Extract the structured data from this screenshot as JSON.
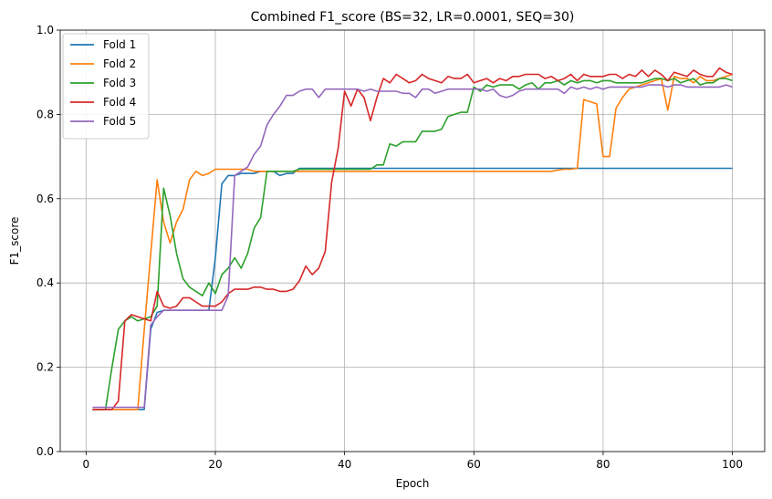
{
  "chart_data": {
    "type": "line",
    "title": "Combined F1_score (BS=32, LR=0.0001, SEQ=30)",
    "xlabel": "Epoch",
    "ylabel": "F1_score",
    "xlim": [
      -4,
      105
    ],
    "ylim": [
      0.0,
      1.0
    ],
    "xticks": [
      0,
      20,
      40,
      60,
      80,
      100
    ],
    "yticks": [
      0.0,
      0.2,
      0.4,
      0.6,
      0.8,
      1.0
    ],
    "xtick_labels": [
      "0",
      "20",
      "40",
      "60",
      "80",
      "100"
    ],
    "ytick_labels": [
      "0.0",
      "0.2",
      "0.4",
      "0.6",
      "0.8",
      "1.0"
    ],
    "grid": true,
    "legend_position": "top-left",
    "series": [
      {
        "name": "Fold 1",
        "color": "#1f77b4",
        "x": [
          1,
          2,
          3,
          4,
          5,
          6,
          7,
          8,
          9,
          10,
          11,
          12,
          13,
          14,
          15,
          16,
          17,
          18,
          19,
          20,
          21,
          22,
          23,
          24,
          25,
          26,
          27,
          28,
          29,
          30,
          31,
          32,
          33,
          34,
          35,
          40,
          50,
          60,
          70,
          80,
          90,
          100
        ],
        "values": [
          0.1,
          0.1,
          0.1,
          0.1,
          0.1,
          0.1,
          0.1,
          0.1,
          0.1,
          0.29,
          0.33,
          0.335,
          0.335,
          0.335,
          0.335,
          0.335,
          0.335,
          0.335,
          0.335,
          0.46,
          0.635,
          0.655,
          0.655,
          0.66,
          0.66,
          0.66,
          0.665,
          0.665,
          0.665,
          0.655,
          0.66,
          0.66,
          0.672,
          0.672,
          0.672,
          0.672,
          0.672,
          0.672,
          0.672,
          0.672,
          0.672,
          0.672
        ]
      },
      {
        "name": "Fold 2",
        "color": "#ff7f0e",
        "x": [
          1,
          2,
          3,
          4,
          5,
          6,
          7,
          8,
          9,
          10,
          11,
          12,
          13,
          14,
          15,
          16,
          17,
          18,
          19,
          20,
          21,
          22,
          23,
          24,
          25,
          26,
          27,
          28,
          29,
          30,
          40,
          50,
          60,
          70,
          72,
          73,
          74,
          75,
          76,
          77,
          78,
          79,
          80,
          81,
          82,
          83,
          84,
          85,
          86,
          87,
          88,
          89,
          90,
          91,
          92,
          93,
          94,
          95,
          96,
          97,
          98,
          99,
          100
        ],
        "values": [
          0.1,
          0.1,
          0.1,
          0.1,
          0.1,
          0.1,
          0.1,
          0.1,
          0.29,
          0.47,
          0.645,
          0.545,
          0.495,
          0.545,
          0.575,
          0.645,
          0.665,
          0.655,
          0.66,
          0.67,
          0.67,
          0.67,
          0.67,
          0.67,
          0.67,
          0.665,
          0.665,
          0.665,
          0.665,
          0.665,
          0.665,
          0.665,
          0.665,
          0.665,
          0.665,
          0.668,
          0.67,
          0.67,
          0.672,
          0.835,
          0.83,
          0.825,
          0.7,
          0.7,
          0.815,
          0.84,
          0.86,
          0.865,
          0.87,
          0.875,
          0.88,
          0.885,
          0.81,
          0.89,
          0.885,
          0.885,
          0.875,
          0.89,
          0.88,
          0.88,
          0.885,
          0.89,
          0.895
        ]
      },
      {
        "name": "Fold 3",
        "color": "#2ca02c",
        "x": [
          1,
          2,
          3,
          4,
          5,
          6,
          7,
          8,
          9,
          10,
          11,
          12,
          13,
          14,
          15,
          16,
          17,
          18,
          19,
          20,
          21,
          22,
          23,
          24,
          25,
          26,
          27,
          28,
          29,
          30,
          31,
          32,
          33,
          34,
          35,
          40,
          44,
          45,
          46,
          47,
          48,
          49,
          50,
          51,
          52,
          53,
          54,
          55,
          56,
          57,
          58,
          59,
          60,
          61,
          62,
          63,
          64,
          65,
          66,
          67,
          68,
          69,
          70,
          71,
          72,
          73,
          74,
          75,
          76,
          77,
          78,
          79,
          80,
          81,
          82,
          83,
          84,
          85,
          86,
          87,
          88,
          89,
          90,
          91,
          92,
          93,
          94,
          95,
          96,
          97,
          98,
          99,
          100
        ],
        "values": [
          0.1,
          0.1,
          0.1,
          0.2,
          0.29,
          0.31,
          0.32,
          0.31,
          0.315,
          0.32,
          0.345,
          0.625,
          0.56,
          0.47,
          0.41,
          0.39,
          0.38,
          0.37,
          0.4,
          0.375,
          0.42,
          0.435,
          0.46,
          0.435,
          0.47,
          0.53,
          0.555,
          0.665,
          0.665,
          0.665,
          0.665,
          0.665,
          0.67,
          0.67,
          0.67,
          0.67,
          0.67,
          0.68,
          0.68,
          0.73,
          0.725,
          0.735,
          0.735,
          0.735,
          0.76,
          0.76,
          0.76,
          0.765,
          0.795,
          0.8,
          0.805,
          0.805,
          0.865,
          0.855,
          0.87,
          0.865,
          0.87,
          0.87,
          0.87,
          0.86,
          0.87,
          0.875,
          0.86,
          0.875,
          0.875,
          0.88,
          0.87,
          0.88,
          0.875,
          0.88,
          0.88,
          0.875,
          0.88,
          0.88,
          0.875,
          0.875,
          0.875,
          0.875,
          0.875,
          0.88,
          0.885,
          0.885,
          0.88,
          0.885,
          0.875,
          0.88,
          0.885,
          0.87,
          0.875,
          0.875,
          0.885,
          0.885,
          0.88
        ]
      },
      {
        "name": "Fold 4",
        "color": "#d62728",
        "x": [
          1,
          2,
          3,
          4,
          5,
          6,
          7,
          8,
          9,
          10,
          11,
          12,
          13,
          14,
          15,
          16,
          17,
          18,
          19,
          20,
          21,
          22,
          23,
          24,
          25,
          26,
          27,
          28,
          29,
          30,
          31,
          32,
          33,
          34,
          35,
          36,
          37,
          38,
          39,
          40,
          41,
          42,
          43,
          44,
          45,
          46,
          47,
          48,
          49,
          50,
          51,
          52,
          53,
          54,
          55,
          56,
          57,
          58,
          59,
          60,
          61,
          62,
          63,
          64,
          65,
          66,
          67,
          68,
          69,
          70,
          71,
          72,
          73,
          74,
          75,
          76,
          77,
          78,
          79,
          80,
          81,
          82,
          83,
          84,
          85,
          86,
          87,
          88,
          89,
          90,
          91,
          92,
          93,
          94,
          95,
          96,
          97,
          98,
          99,
          100
        ],
        "values": [
          0.1,
          0.1,
          0.1,
          0.1,
          0.12,
          0.31,
          0.325,
          0.32,
          0.315,
          0.31,
          0.38,
          0.345,
          0.34,
          0.345,
          0.365,
          0.365,
          0.355,
          0.345,
          0.345,
          0.345,
          0.355,
          0.375,
          0.385,
          0.385,
          0.385,
          0.39,
          0.39,
          0.385,
          0.385,
          0.38,
          0.38,
          0.385,
          0.405,
          0.44,
          0.42,
          0.435,
          0.475,
          0.64,
          0.72,
          0.855,
          0.82,
          0.86,
          0.84,
          0.785,
          0.84,
          0.885,
          0.875,
          0.895,
          0.885,
          0.875,
          0.88,
          0.895,
          0.885,
          0.88,
          0.875,
          0.89,
          0.885,
          0.885,
          0.895,
          0.875,
          0.88,
          0.885,
          0.875,
          0.885,
          0.88,
          0.89,
          0.89,
          0.895,
          0.895,
          0.895,
          0.885,
          0.89,
          0.88,
          0.885,
          0.895,
          0.88,
          0.895,
          0.89,
          0.89,
          0.89,
          0.895,
          0.895,
          0.885,
          0.895,
          0.89,
          0.905,
          0.89,
          0.905,
          0.895,
          0.88,
          0.9,
          0.895,
          0.89,
          0.905,
          0.895,
          0.89,
          0.89,
          0.91,
          0.9,
          0.895
        ]
      },
      {
        "name": "Fold 5",
        "color": "#9467bd",
        "x": [
          1,
          2,
          3,
          4,
          5,
          6,
          7,
          8,
          9,
          10,
          11,
          12,
          13,
          14,
          15,
          16,
          17,
          18,
          19,
          20,
          21,
          22,
          23,
          24,
          25,
          26,
          27,
          28,
          29,
          30,
          31,
          32,
          33,
          34,
          35,
          36,
          37,
          38,
          39,
          40,
          41,
          42,
          43,
          44,
          45,
          46,
          47,
          48,
          49,
          50,
          51,
          52,
          53,
          54,
          55,
          56,
          57,
          58,
          59,
          60,
          61,
          62,
          63,
          64,
          65,
          66,
          67,
          68,
          69,
          70,
          71,
          72,
          73,
          74,
          75,
          76,
          77,
          78,
          79,
          80,
          81,
          82,
          83,
          84,
          85,
          86,
          87,
          88,
          89,
          90,
          91,
          92,
          93,
          94,
          95,
          96,
          97,
          98,
          99,
          100
        ],
        "values": [
          0.105,
          0.105,
          0.105,
          0.105,
          0.105,
          0.105,
          0.105,
          0.105,
          0.105,
          0.3,
          0.32,
          0.335,
          0.335,
          0.335,
          0.335,
          0.335,
          0.335,
          0.335,
          0.335,
          0.335,
          0.335,
          0.37,
          0.655,
          0.665,
          0.675,
          0.705,
          0.725,
          0.775,
          0.8,
          0.82,
          0.845,
          0.845,
          0.855,
          0.86,
          0.86,
          0.84,
          0.86,
          0.86,
          0.86,
          0.86,
          0.86,
          0.86,
          0.855,
          0.86,
          0.855,
          0.855,
          0.855,
          0.855,
          0.85,
          0.85,
          0.84,
          0.86,
          0.86,
          0.85,
          0.855,
          0.86,
          0.86,
          0.86,
          0.86,
          0.86,
          0.86,
          0.855,
          0.86,
          0.845,
          0.84,
          0.845,
          0.855,
          0.86,
          0.86,
          0.86,
          0.86,
          0.86,
          0.86,
          0.85,
          0.865,
          0.86,
          0.865,
          0.86,
          0.865,
          0.86,
          0.865,
          0.865,
          0.865,
          0.865,
          0.865,
          0.865,
          0.87,
          0.87,
          0.87,
          0.865,
          0.87,
          0.87,
          0.865,
          0.865,
          0.865,
          0.865,
          0.865,
          0.865,
          0.87,
          0.865
        ]
      }
    ]
  }
}
